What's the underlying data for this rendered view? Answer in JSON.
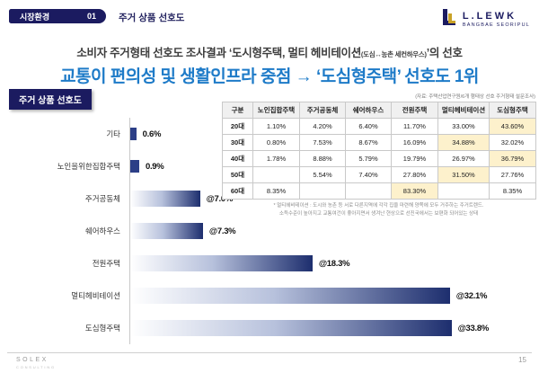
{
  "header": {
    "section_label": "시장환경",
    "section_number": "01",
    "section_title": "주거 상품 선호도",
    "logo": {
      "name": "L.LEWK",
      "subtitle": "BANGBAE SEORIPUL"
    }
  },
  "title": {
    "line1_prefix": "소비자 주거형태 선호도 조사결과 ‘도시형주택, 멀티 헤비테이션",
    "line1_small": "(도심↔농촌 세컨하우스)",
    "line1_suffix": "’의 선호",
    "line2": "교통이 편의성 및 생활인프라 중점 → ‘도심형주택’ 선호도 1위"
  },
  "chart_badge": "주거 상품 선호도",
  "chart_data": {
    "type": "bar",
    "orientation": "horizontal",
    "title": "주거 상품 선호도",
    "categories": [
      "기타",
      "노인을위한집합주택",
      "주거공동체",
      "쉐어하우스",
      "전원주택",
      "멀티헤비테이션",
      "도심형주택"
    ],
    "values": [
      0.6,
      0.9,
      7.0,
      7.3,
      18.3,
      32.1,
      33.8
    ],
    "value_labels": [
      "0.6%",
      "0.9%",
      "@7.0%",
      "@7.3%",
      "@18.3%",
      "@32.1%",
      "@33.8%"
    ],
    "xlim": [
      0,
      36
    ],
    "grid": false,
    "bar_color": "#1d2e6e"
  },
  "table": {
    "source_note": "(자료: 주택산업연구원/6개 행태상 선호 주거형태 설문조사)",
    "headers": [
      "구분",
      "노인집합주택",
      "주거공동체",
      "쉐어하우스",
      "전원주택",
      "멀티헤비테이션",
      "도심형주택"
    ],
    "rows": [
      {
        "label": "20대",
        "cells": [
          "1.10%",
          "4.20%",
          "6.40%",
          "11.70%",
          "33.00%",
          "43.60%"
        ],
        "highlight": 5
      },
      {
        "label": "30대",
        "cells": [
          "0.80%",
          "7.53%",
          "8.67%",
          "16.09%",
          "34.88%",
          "32.02%"
        ],
        "highlight": 4
      },
      {
        "label": "40대",
        "cells": [
          "1.78%",
          "8.88%",
          "5.79%",
          "19.79%",
          "26.97%",
          "36.79%"
        ],
        "highlight": 5
      },
      {
        "label": "50대",
        "cells": [
          "",
          "5.54%",
          "7.40%",
          "27.80%",
          "31.50%",
          "27.76%"
        ],
        "highlight": 4
      },
      {
        "label": "60대",
        "cells": [
          "8.35%",
          "",
          "",
          "83.30%",
          "",
          "8.35%"
        ],
        "highlight": 3
      }
    ],
    "footnote_line1": "* 멀티헤비테이션 : 도시와 농촌 등 서로 다른지역에 각각 집을 마련해 양쪽에 모두 거주하는 주거트렌드.",
    "footnote_line2": "소득수준이 높아지고 교통여건이 좋아지면서 생겨난 현상으로 선진국에서는 보편화 되어있는 상태"
  },
  "footer": {
    "brand": "SOLEX",
    "brand_sub": "CONSULTING",
    "page": "15"
  },
  "colors": {
    "navy": "#1b1b60",
    "accent_blue": "#1e7bc8",
    "bar_navy": "#1d2e6e",
    "highlight_cell": "#fdf1cc",
    "table_header_bg": "#f0f0f0",
    "gold": "#c9a227"
  }
}
